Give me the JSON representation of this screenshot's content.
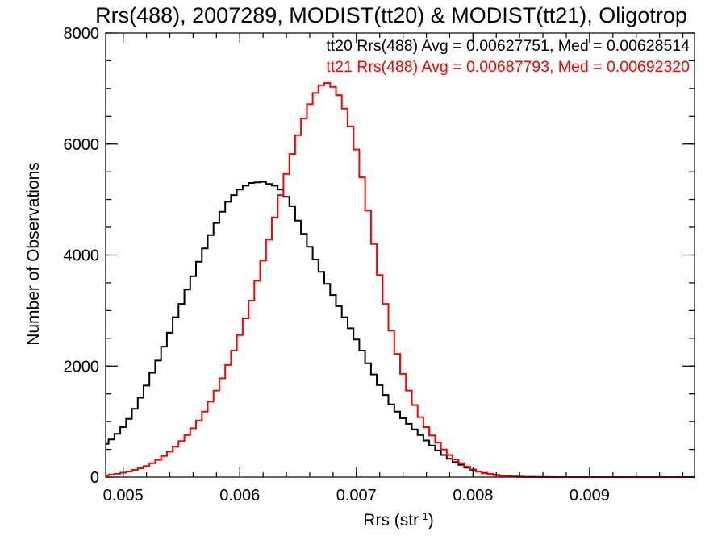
{
  "chart_data": {
    "type": "line",
    "title": "Rrs(488), 2007289, MODIST(tt20) & MODIST(tt21), Oligotrop",
    "xlabel": "Rrs (str",
    "xlabel_superscript": "-1",
    "xlabel_suffix": ")",
    "ylabel": "Number of Observations",
    "xlim": [
      0.00485,
      0.0099
    ],
    "ylim": [
      0,
      8000
    ],
    "xticks": [
      {
        "value": 0.005,
        "label": "0.005"
      },
      {
        "value": 0.006,
        "label": "0.006"
      },
      {
        "value": 0.007,
        "label": "0.007"
      },
      {
        "value": 0.008,
        "label": "0.008"
      },
      {
        "value": 0.009,
        "label": "0.009"
      }
    ],
    "yticks": [
      {
        "value": 0,
        "label": "0"
      },
      {
        "value": 2000,
        "label": "2000"
      },
      {
        "value": 4000,
        "label": "4000"
      },
      {
        "value": 6000,
        "label": "6000"
      },
      {
        "value": 8000,
        "label": "8000"
      }
    ],
    "grid": false,
    "legend_position": "top-right",
    "series": [
      {
        "name": "tt20 Rrs(488) Avg = 0.00627751, Med = 0.00628514",
        "color": "#000000",
        "x": [
          0.00485,
          0.0049,
          0.00495,
          0.005,
          0.00505,
          0.0051,
          0.00515,
          0.0052,
          0.00525,
          0.0053,
          0.00535,
          0.0054,
          0.00545,
          0.0055,
          0.00555,
          0.0056,
          0.00565,
          0.0057,
          0.00575,
          0.0058,
          0.00585,
          0.0059,
          0.00595,
          0.006,
          0.00605,
          0.0061,
          0.00615,
          0.0062,
          0.00625,
          0.0063,
          0.00635,
          0.0064,
          0.00645,
          0.0065,
          0.00655,
          0.0066,
          0.00665,
          0.0067,
          0.00675,
          0.0068,
          0.00685,
          0.0069,
          0.00695,
          0.007,
          0.00705,
          0.0071,
          0.00715,
          0.0072,
          0.00725,
          0.0073,
          0.00735,
          0.0074,
          0.00745,
          0.0075,
          0.00755,
          0.0076,
          0.00765,
          0.0077,
          0.00775,
          0.0078,
          0.00785,
          0.0079,
          0.00795,
          0.008,
          0.00805,
          0.0081,
          0.00815,
          0.0082,
          0.00825,
          0.0083,
          0.00835,
          0.0084,
          0.00845,
          0.0085,
          0.00855,
          0.0086,
          0.00865,
          0.0087,
          0.00875,
          0.0088,
          0.00885,
          0.0089,
          0.00895,
          0.009,
          0.00905,
          0.0091,
          0.00915,
          0.0092,
          0.00925,
          0.0093,
          0.00935,
          0.0094,
          0.00945,
          0.0095,
          0.00955,
          0.0096,
          0.00965,
          0.0097,
          0.00975,
          0.0098,
          0.00985,
          0.0099
        ],
        "values": [
          600,
          680,
          780,
          900,
          1050,
          1230,
          1430,
          1650,
          1880,
          2100,
          2350,
          2600,
          2880,
          3120,
          3380,
          3620,
          3880,
          4120,
          4360,
          4580,
          4780,
          4960,
          5080,
          5180,
          5250,
          5300,
          5310,
          5320,
          5280,
          5250,
          5180,
          5050,
          4880,
          4620,
          4380,
          4150,
          3920,
          3700,
          3480,
          3280,
          3080,
          2880,
          2680,
          2480,
          2280,
          2050,
          1850,
          1660,
          1480,
          1310,
          1180,
          1060,
          960,
          860,
          760,
          660,
          570,
          480,
          400,
          330,
          270,
          220,
          170,
          130,
          100,
          75,
          55,
          40,
          28,
          18,
          12,
          8,
          5,
          3,
          2,
          1,
          1,
          0,
          0,
          0,
          0,
          0,
          0,
          0,
          0,
          0,
          0,
          0,
          0,
          0,
          0,
          0,
          0,
          0,
          0,
          0,
          0,
          0,
          0,
          0,
          0,
          0
        ]
      },
      {
        "name": "tt21 Rrs(488) Avg = 0.00687793, Med = 0.00692320",
        "color": "#ff0000",
        "x": [
          0.00485,
          0.0049,
          0.00495,
          0.005,
          0.00505,
          0.0051,
          0.00515,
          0.0052,
          0.00525,
          0.0053,
          0.00535,
          0.0054,
          0.00545,
          0.0055,
          0.00555,
          0.0056,
          0.00565,
          0.0057,
          0.00575,
          0.0058,
          0.00585,
          0.0059,
          0.00595,
          0.006,
          0.00605,
          0.0061,
          0.00615,
          0.0062,
          0.00625,
          0.0063,
          0.00635,
          0.0064,
          0.00645,
          0.0065,
          0.00655,
          0.0066,
          0.00665,
          0.0067,
          0.00675,
          0.0068,
          0.00685,
          0.0069,
          0.00695,
          0.007,
          0.00705,
          0.0071,
          0.00715,
          0.0072,
          0.00725,
          0.0073,
          0.00735,
          0.0074,
          0.00745,
          0.0075,
          0.00755,
          0.0076,
          0.00765,
          0.0077,
          0.00775,
          0.0078,
          0.00785,
          0.0079,
          0.00795,
          0.008,
          0.00805,
          0.0081,
          0.00815,
          0.0082,
          0.00825,
          0.0083,
          0.00835,
          0.0084,
          0.00845,
          0.0085,
          0.00855,
          0.0086,
          0.00865,
          0.0087,
          0.00875,
          0.0088,
          0.00885,
          0.0089,
          0.00895,
          0.009,
          0.00905,
          0.0091,
          0.00915,
          0.0092,
          0.00925,
          0.0093,
          0.00935,
          0.0094,
          0.00945,
          0.0095,
          0.00955,
          0.0096,
          0.00965,
          0.0097,
          0.00975,
          0.0098,
          0.00985,
          0.0099
        ],
        "values": [
          30,
          45,
          60,
          80,
          100,
          130,
          160,
          200,
          250,
          310,
          380,
          460,
          550,
          650,
          760,
          880,
          1020,
          1180,
          1360,
          1560,
          1780,
          2020,
          2280,
          2560,
          2860,
          3180,
          3540,
          3900,
          4280,
          4680,
          5080,
          5460,
          5820,
          6160,
          6460,
          6720,
          6920,
          7060,
          7100,
          7030,
          6880,
          6640,
          6320,
          5900,
          5400,
          4800,
          4200,
          3640,
          3120,
          2640,
          2220,
          1860,
          1560,
          1300,
          1080,
          900,
          750,
          620,
          500,
          400,
          320,
          250,
          190,
          140,
          100,
          70,
          48,
          32,
          20,
          12,
          8,
          5,
          3,
          2,
          1,
          1,
          0,
          0,
          0,
          0,
          0,
          0,
          0,
          0,
          0,
          0,
          0,
          0,
          0,
          0,
          0,
          0,
          0,
          0,
          0,
          0,
          0,
          0,
          0,
          0,
          0,
          0
        ]
      }
    ]
  }
}
